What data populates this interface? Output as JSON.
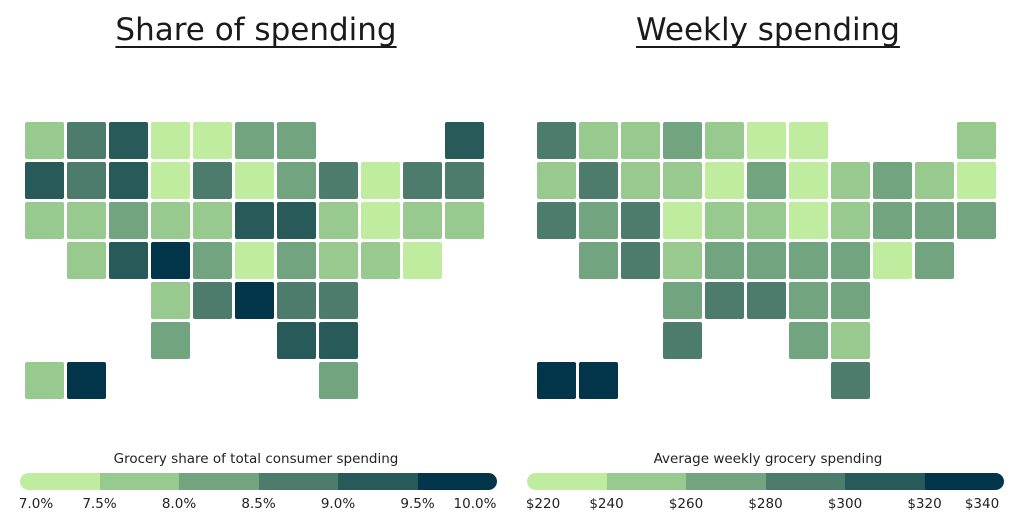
{
  "colors": [
    "#c0eca0",
    "#98c98f",
    "#72a57f",
    "#4e7c6c",
    "#285a5a",
    "#03354a"
  ],
  "maps": [
    {
      "title": "Share of spending",
      "legend_title": "Grocery share of total consumer spending",
      "ticks": [
        "7.0%",
        "7.5%",
        "8.0%",
        "8.5%",
        "9.0%",
        "9.5%",
        "10.0%"
      ],
      "states": {
        "WA": 1,
        "OR": 4,
        "CA": 1,
        "NV": 3,
        "ID": 3,
        "MT": 4,
        "WY": 4,
        "UT": 1,
        "AZ": 1,
        "CO": 2,
        "NM": 4,
        "ND": 0,
        "SD": 0,
        "NE": 1,
        "KS": 5,
        "OK": 1,
        "TX": 2,
        "MN": 0,
        "IA": 3,
        "MO": 1,
        "AR": 2,
        "LA": 3,
        "WI": 2,
        "IL": 0,
        "MI": 2,
        "IN": 2,
        "OH": 3,
        "KY": 4,
        "TN": 0,
        "MS": 5,
        "AL": 3,
        "GA": 4,
        "SC": 4,
        "FL": 2,
        "NC": 3,
        "VA": 2,
        "WV": 4,
        "PA": 1,
        "NY": 0,
        "VT": 3,
        "NH": 3,
        "ME": 4,
        "MA": 1,
        "CT": 0,
        "RI": 1,
        "NJ": 0,
        "DE": 1,
        "MD": 1,
        "AK": 1,
        "HI": 5
      }
    },
    {
      "title": "Weekly spending",
      "legend_title": "Average weekly grocery spending",
      "ticks": [
        "$220",
        "$240",
        "$260",
        "$280",
        "$300",
        "$320",
        "$340"
      ],
      "states": {
        "WA": 3,
        "OR": 1,
        "CA": 3,
        "NV": 3,
        "ID": 1,
        "MT": 1,
        "WY": 1,
        "UT": 2,
        "AZ": 2,
        "CO": 3,
        "NM": 3,
        "ND": 2,
        "SD": 1,
        "NE": 0,
        "KS": 1,
        "OK": 2,
        "TX": 3,
        "MN": 1,
        "IA": 0,
        "MO": 1,
        "AR": 2,
        "LA": 3,
        "WI": 0,
        "IL": 2,
        "MI": 0,
        "IN": 0,
        "OH": 1,
        "KY": 1,
        "TN": 2,
        "MS": 3,
        "AL": 2,
        "GA": 2,
        "SC": 1,
        "FL": 3,
        "NC": 2,
        "VA": 2,
        "WV": 0,
        "PA": 1,
        "NY": 2,
        "VT": 1,
        "NH": 0,
        "ME": 1,
        "MA": 2,
        "CT": 2,
        "RI": 2,
        "NJ": 2,
        "DE": 0,
        "MD": 2,
        "AK": 5,
        "HI": 5
      }
    }
  ]
}
